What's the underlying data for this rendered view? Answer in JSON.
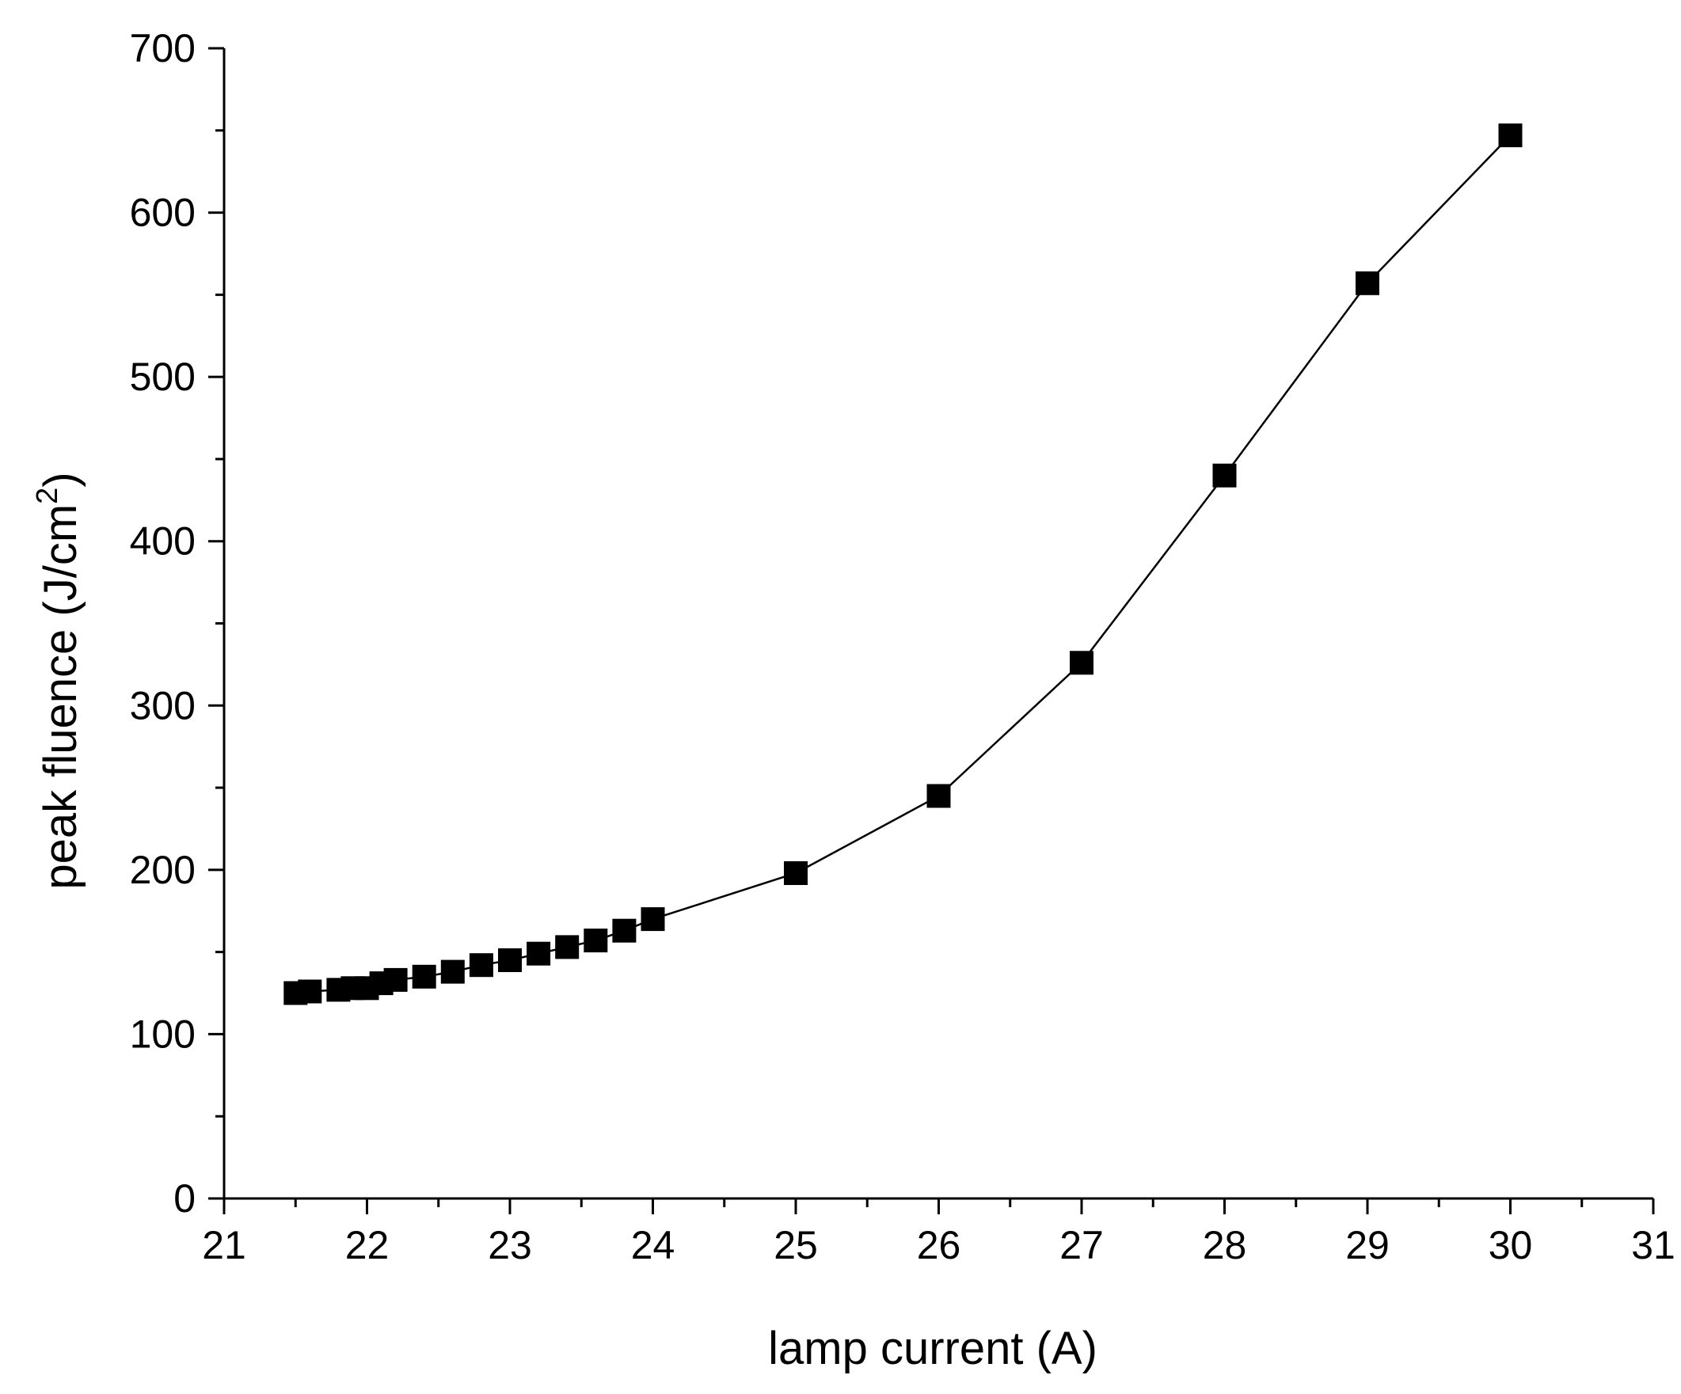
{
  "chart_data": {
    "type": "line",
    "title": "",
    "xlabel": "lamp current (A)",
    "ylabel_main": "peak fluence (J/cm",
    "ylabel_sup": "2",
    "ylabel_end": ")",
    "xlim": [
      21,
      31
    ],
    "ylim": [
      0,
      700
    ],
    "xticks": [
      "21",
      "22",
      "23",
      "24",
      "25",
      "26",
      "27",
      "28",
      "29",
      "30",
      "31"
    ],
    "yticks": [
      "0",
      "100",
      "200",
      "300",
      "400",
      "500",
      "600",
      "700"
    ],
    "x_minor_step": 0.5,
    "y_minor_step": 50,
    "grid": false,
    "marker": "square",
    "color": "#000000",
    "series": [
      {
        "x": [
          21.5,
          21.6,
          21.8,
          21.9,
          22.0,
          22.1,
          22.2,
          22.4,
          22.6,
          22.8,
          23.0,
          23.2,
          23.4,
          23.6,
          23.8,
          24.0,
          25.0,
          26.0,
          27.0,
          28.0,
          29.0,
          30.0
        ],
        "y": [
          125,
          126,
          127,
          128,
          128,
          131,
          133,
          135,
          138,
          142,
          145,
          149,
          153,
          157,
          163,
          170,
          198,
          245,
          326,
          440,
          557,
          647
        ]
      }
    ]
  }
}
